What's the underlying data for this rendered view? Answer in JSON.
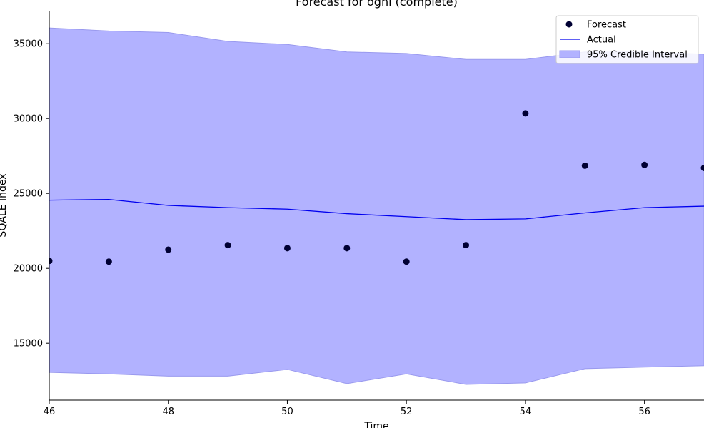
{
  "chart_data": {
    "type": "line",
    "title": "Forecast for ognl (complete)",
    "xlabel": "Time",
    "ylabel": "SQALE Index",
    "xlim": [
      46,
      57
    ],
    "ylim": [
      11200,
      37200
    ],
    "xticks": [
      "46",
      "48",
      "50",
      "52",
      "54",
      "56"
    ],
    "yticks": [
      "15000",
      "20000",
      "25000",
      "30000",
      "35000"
    ],
    "x": [
      46,
      47,
      48,
      49,
      50,
      51,
      52,
      53,
      54,
      55,
      56,
      57
    ],
    "series": [
      {
        "name": "Forecast",
        "kind": "scatter",
        "color": "#000033",
        "values": [
          20500,
          20450,
          21250,
          21550,
          21350,
          21350,
          20450,
          21550,
          30350,
          26850,
          26900,
          26700
        ]
      },
      {
        "name": "Actual",
        "kind": "line",
        "color": "#0000ee",
        "values": [
          24550,
          24600,
          24200,
          24050,
          23950,
          23650,
          23450,
          23250,
          23300,
          23700,
          24050,
          24150
        ]
      }
    ],
    "interval": {
      "name": "95% Credible Interval",
      "color": "#b2b2ff",
      "edge_color": "#9999ee",
      "lower": [
        13050,
        12950,
        12800,
        12800,
        13250,
        12300,
        12950,
        12250,
        12350,
        13300,
        13400,
        13500
      ],
      "upper": [
        36050,
        35850,
        35750,
        35150,
        34950,
        34450,
        34350,
        33950,
        33950,
        34450,
        34450,
        34300
      ]
    },
    "legend": "top-right",
    "grid": false
  }
}
